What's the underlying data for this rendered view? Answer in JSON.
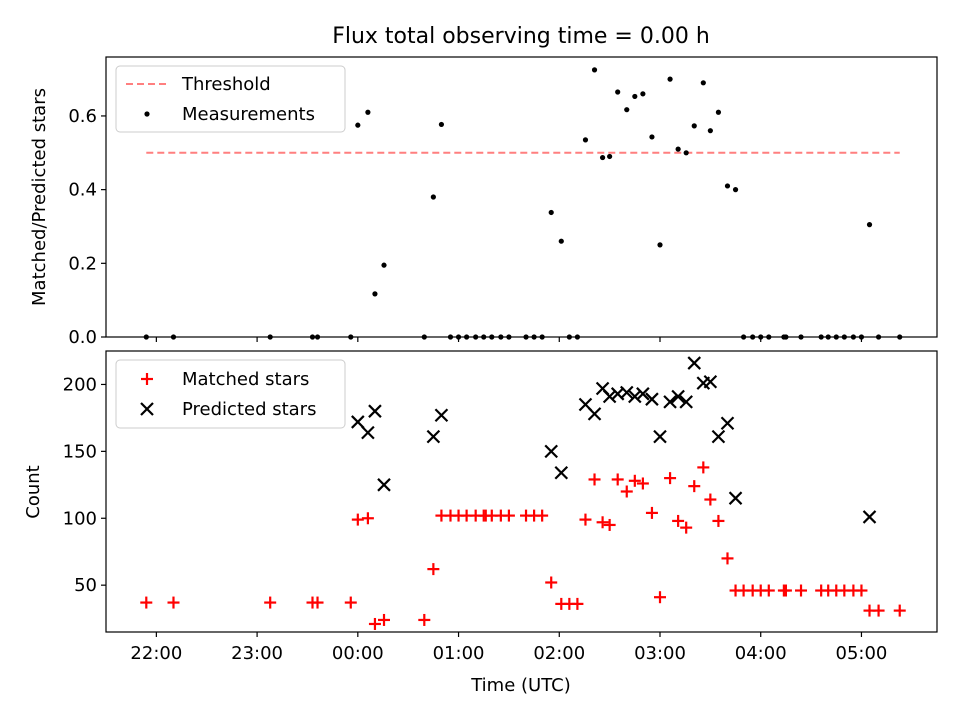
{
  "chart_data": {
    "type": "scatter",
    "title": "Flux total observing time = 0.00 h",
    "xlabel": "Time (UTC)",
    "xlim_hours": [
      21.5,
      29.75
    ],
    "xticks": [
      {
        "value": 22,
        "label": "22:00"
      },
      {
        "value": 23,
        "label": "23:00"
      },
      {
        "value": 24,
        "label": "00:00"
      },
      {
        "value": 25,
        "label": "01:00"
      },
      {
        "value": 26,
        "label": "02:00"
      },
      {
        "value": 27,
        "label": "03:00"
      },
      {
        "value": 28,
        "label": "04:00"
      },
      {
        "value": 29,
        "label": "05:00"
      }
    ],
    "top": {
      "ylabel": "Matched/Predicted stars",
      "ylim": [
        0,
        0.76
      ],
      "yticks": [
        {
          "value": 0.0,
          "label": "0.0"
        },
        {
          "value": 0.2,
          "label": "0.2"
        },
        {
          "value": 0.4,
          "label": "0.4"
        },
        {
          "value": 0.6,
          "label": "0.6"
        }
      ],
      "threshold": {
        "name": "Threshold",
        "y": 0.5,
        "x": [
          21.9,
          29.38
        ],
        "color": "#ff7f7f"
      },
      "measurements": {
        "name": "Measurements",
        "color": "#000000",
        "points": [
          [
            21.9,
            0
          ],
          [
            22.17,
            0
          ],
          [
            23.13,
            0
          ],
          [
            23.55,
            0
          ],
          [
            23.6,
            0
          ],
          [
            23.93,
            0
          ],
          [
            24.0,
            0.575
          ],
          [
            24.1,
            0.61
          ],
          [
            24.17,
            0.117
          ],
          [
            24.26,
            0.195
          ],
          [
            24.66,
            0
          ],
          [
            24.75,
            0.38
          ],
          [
            24.83,
            0.577
          ],
          [
            24.92,
            0
          ],
          [
            25.0,
            0
          ],
          [
            25.08,
            0
          ],
          [
            25.17,
            0
          ],
          [
            25.25,
            0
          ],
          [
            25.33,
            0
          ],
          [
            25.42,
            0
          ],
          [
            25.5,
            0
          ],
          [
            25.67,
            0
          ],
          [
            25.75,
            0
          ],
          [
            25.83,
            0
          ],
          [
            25.92,
            0.338
          ],
          [
            26.02,
            0.26
          ],
          [
            26.1,
            0
          ],
          [
            26.18,
            0
          ],
          [
            26.26,
            0.535
          ],
          [
            26.35,
            0.725
          ],
          [
            26.43,
            0.487
          ],
          [
            26.5,
            0.49
          ],
          [
            26.58,
            0.665
          ],
          [
            26.67,
            0.617
          ],
          [
            26.75,
            0.653
          ],
          [
            26.83,
            0.66
          ],
          [
            26.92,
            0.543
          ],
          [
            27.0,
            0.25
          ],
          [
            27.1,
            0.7
          ],
          [
            27.18,
            0.51
          ],
          [
            27.26,
            0.5
          ],
          [
            27.34,
            0.573
          ],
          [
            27.43,
            0.69
          ],
          [
            27.5,
            0.56
          ],
          [
            27.58,
            0.61
          ],
          [
            27.67,
            0.41
          ],
          [
            27.75,
            0.4
          ],
          [
            27.83,
            0
          ],
          [
            27.92,
            0
          ],
          [
            28.0,
            0
          ],
          [
            28.08,
            0
          ],
          [
            28.23,
            0
          ],
          [
            28.25,
            0
          ],
          [
            28.4,
            0
          ],
          [
            28.6,
            0
          ],
          [
            28.67,
            0
          ],
          [
            28.75,
            0
          ],
          [
            28.83,
            0
          ],
          [
            28.92,
            0
          ],
          [
            29.0,
            0
          ],
          [
            29.08,
            0.305
          ],
          [
            29.17,
            0
          ],
          [
            29.38,
            0
          ]
        ]
      }
    },
    "bottom": {
      "ylabel": "Count",
      "ylim": [
        15,
        225
      ],
      "yticks": [
        {
          "value": 50,
          "label": "50"
        },
        {
          "value": 100,
          "label": "100"
        },
        {
          "value": 150,
          "label": "150"
        },
        {
          "value": 200,
          "label": "200"
        }
      ],
      "matched": {
        "name": "Matched stars",
        "color": "#ff0000",
        "points": [
          [
            21.9,
            37
          ],
          [
            22.17,
            37
          ],
          [
            23.13,
            37
          ],
          [
            23.55,
            37
          ],
          [
            23.6,
            37
          ],
          [
            23.93,
            37
          ],
          [
            24.0,
            99
          ],
          [
            24.1,
            100
          ],
          [
            24.17,
            21
          ],
          [
            24.26,
            24
          ],
          [
            24.66,
            24
          ],
          [
            24.75,
            62
          ],
          [
            24.83,
            102
          ],
          [
            24.92,
            102
          ],
          [
            25.0,
            102
          ],
          [
            25.08,
            102
          ],
          [
            25.17,
            102
          ],
          [
            25.25,
            102
          ],
          [
            25.27,
            102
          ],
          [
            25.33,
            102
          ],
          [
            25.42,
            102
          ],
          [
            25.5,
            102
          ],
          [
            25.67,
            102
          ],
          [
            25.75,
            102
          ],
          [
            25.83,
            102
          ],
          [
            25.92,
            52
          ],
          [
            26.02,
            36
          ],
          [
            26.1,
            36
          ],
          [
            26.18,
            36
          ],
          [
            26.26,
            99
          ],
          [
            26.35,
            129
          ],
          [
            26.43,
            97
          ],
          [
            26.5,
            95
          ],
          [
            26.58,
            129
          ],
          [
            26.67,
            120
          ],
          [
            26.75,
            128
          ],
          [
            26.83,
            126
          ],
          [
            26.92,
            104
          ],
          [
            27.0,
            41
          ],
          [
            27.1,
            130
          ],
          [
            27.18,
            98
          ],
          [
            27.26,
            93
          ],
          [
            27.34,
            124
          ],
          [
            27.43,
            138
          ],
          [
            27.5,
            114
          ],
          [
            27.58,
            98
          ],
          [
            27.67,
            70
          ],
          [
            27.75,
            46
          ],
          [
            27.83,
            46
          ],
          [
            27.92,
            46
          ],
          [
            28.0,
            46
          ],
          [
            28.08,
            46
          ],
          [
            28.23,
            46
          ],
          [
            28.25,
            46
          ],
          [
            28.4,
            46
          ],
          [
            28.6,
            46
          ],
          [
            28.67,
            46
          ],
          [
            28.75,
            46
          ],
          [
            28.83,
            46
          ],
          [
            28.92,
            46
          ],
          [
            29.0,
            46
          ],
          [
            29.08,
            31
          ],
          [
            29.17,
            31
          ],
          [
            29.38,
            31
          ]
        ]
      },
      "predicted": {
        "name": "Predicted stars",
        "color": "#000000",
        "points": [
          [
            24.0,
            172
          ],
          [
            24.1,
            164
          ],
          [
            24.17,
            180
          ],
          [
            24.26,
            125
          ],
          [
            24.75,
            161
          ],
          [
            24.83,
            177
          ],
          [
            25.92,
            150
          ],
          [
            26.02,
            134
          ],
          [
            26.26,
            185
          ],
          [
            26.35,
            178
          ],
          [
            26.43,
            197
          ],
          [
            26.5,
            191
          ],
          [
            26.58,
            193
          ],
          [
            26.67,
            194
          ],
          [
            26.75,
            191
          ],
          [
            26.83,
            193
          ],
          [
            26.92,
            189
          ],
          [
            27.0,
            161
          ],
          [
            27.1,
            187
          ],
          [
            27.18,
            191
          ],
          [
            27.26,
            187
          ],
          [
            27.34,
            216
          ],
          [
            27.43,
            201
          ],
          [
            27.5,
            202
          ],
          [
            27.58,
            161
          ],
          [
            27.67,
            171
          ],
          [
            27.75,
            115
          ],
          [
            29.08,
            101
          ]
        ]
      }
    }
  }
}
